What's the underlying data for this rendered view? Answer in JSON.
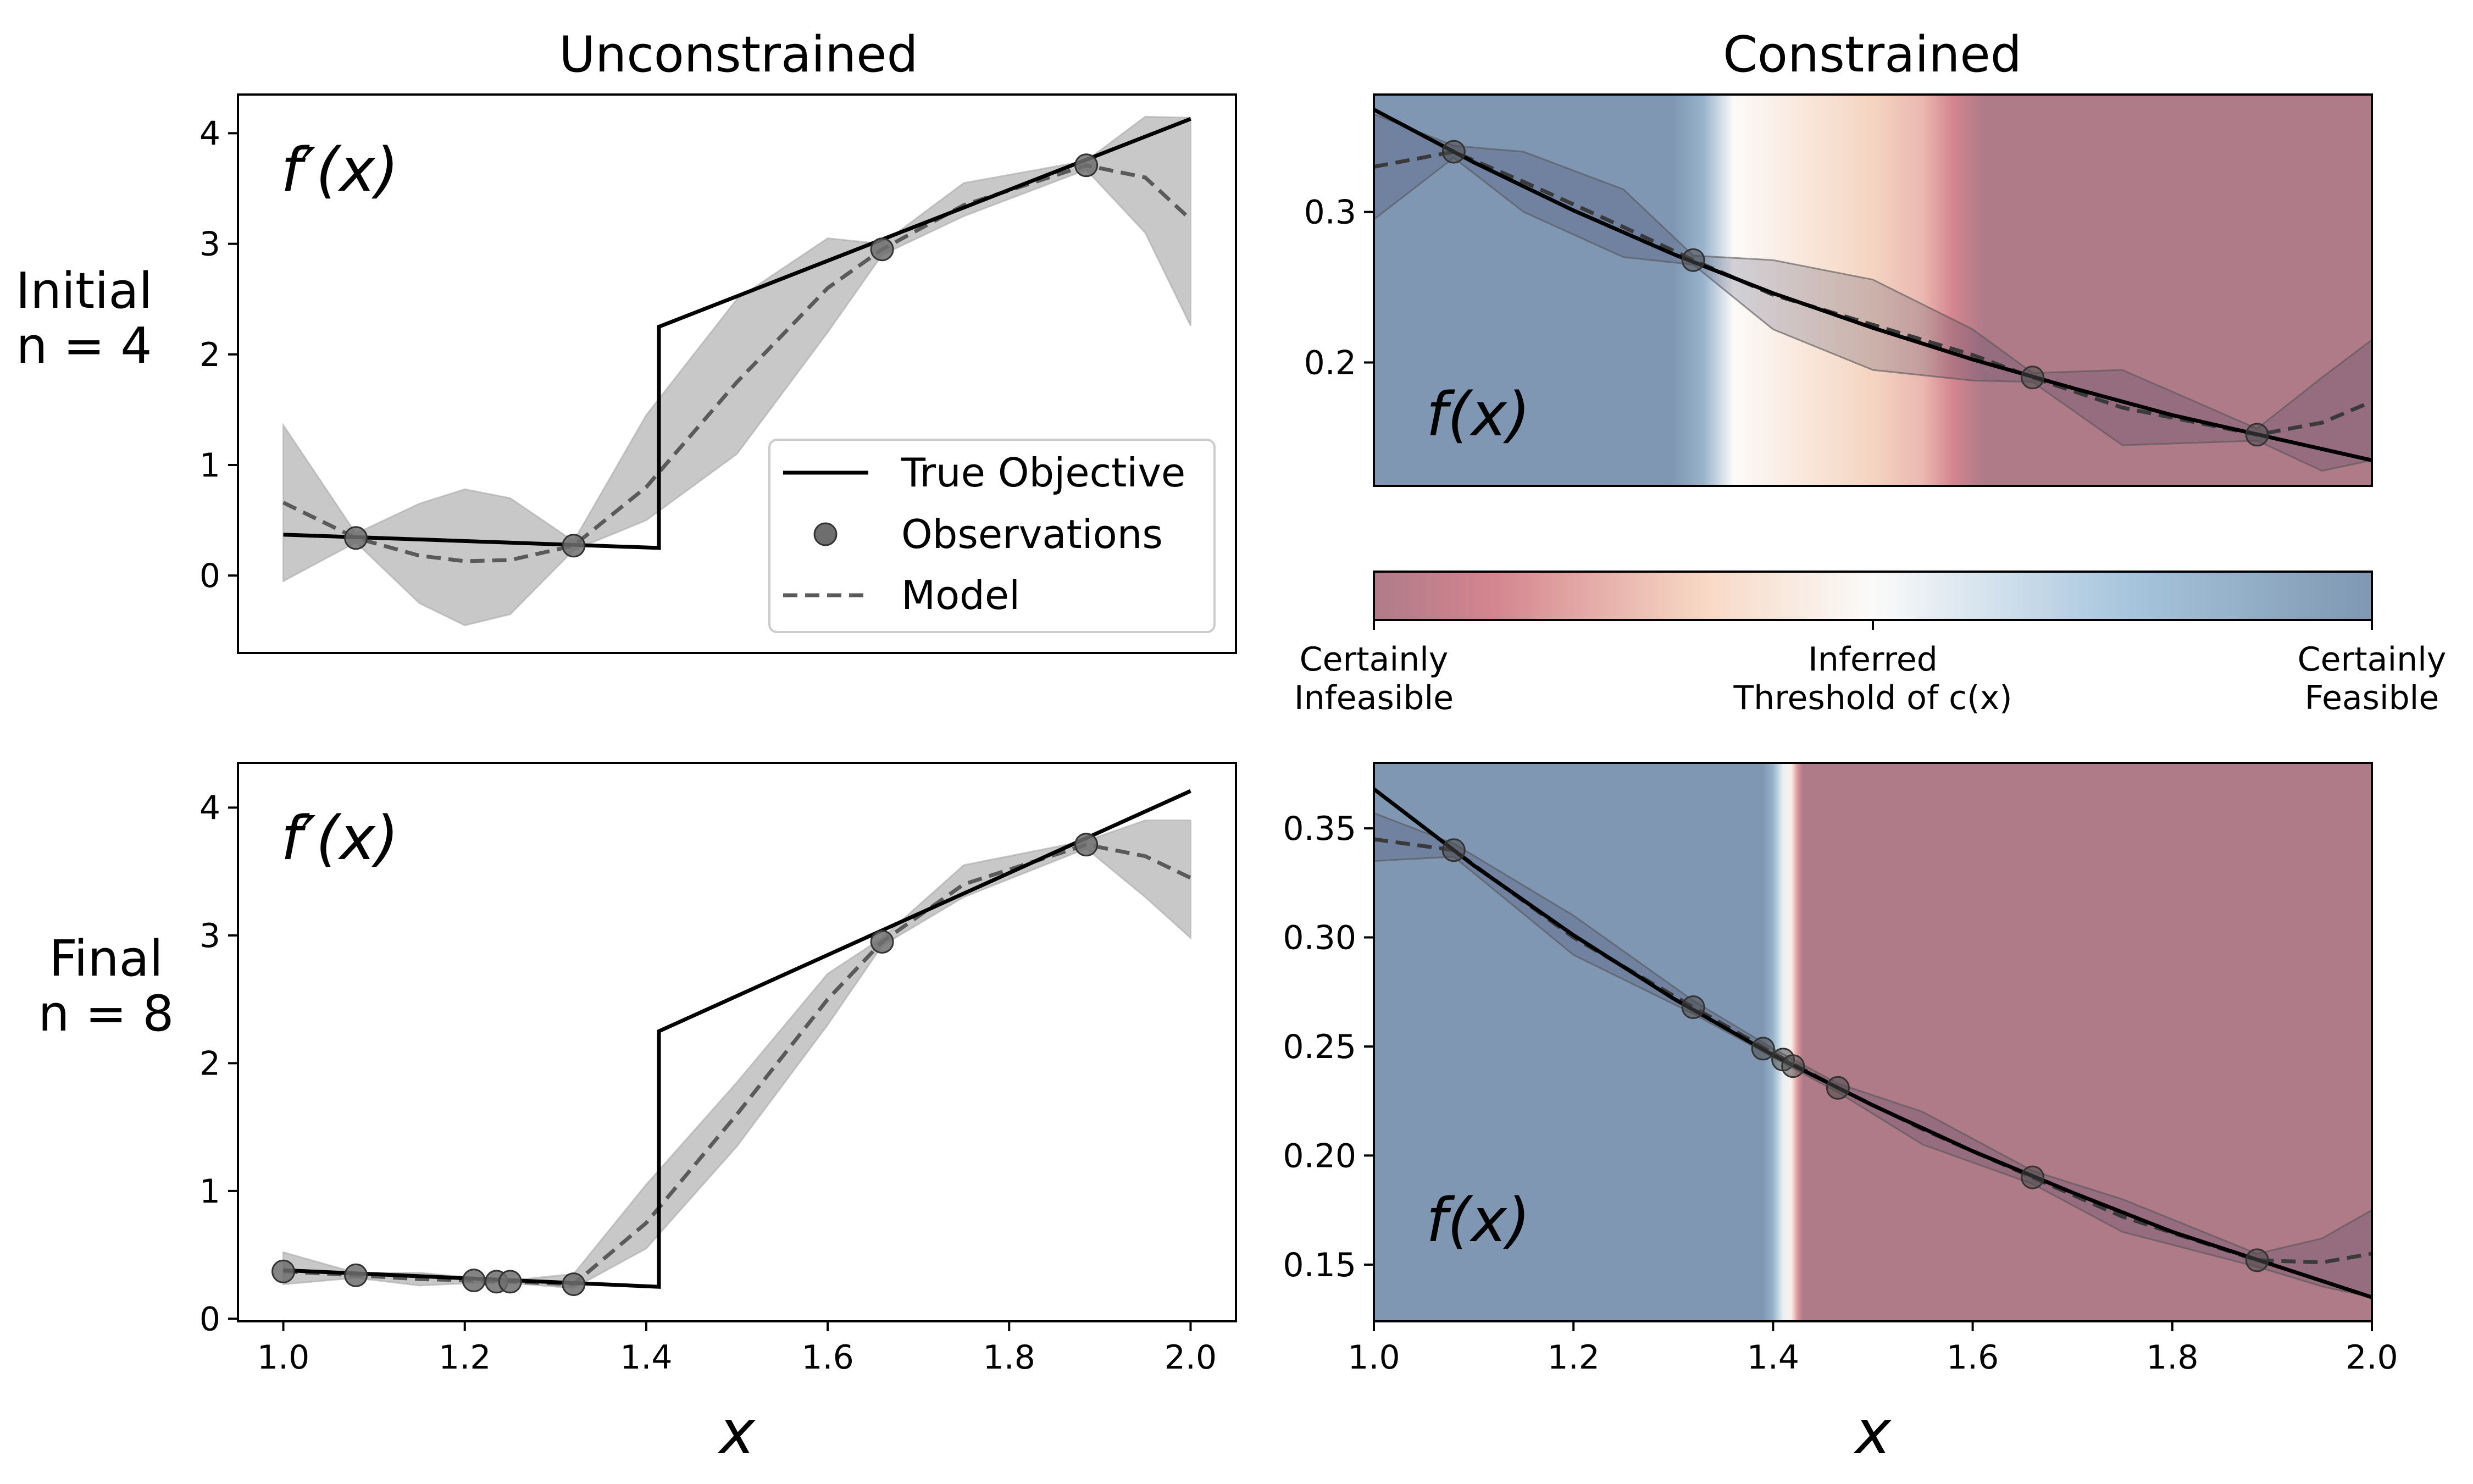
{
  "column_titles": [
    "Unconstrained",
    "Constrained"
  ],
  "row_labels": [
    {
      "line1": "Initial",
      "line2": "n = 4"
    },
    {
      "line1": "Final",
      "line2": "n = 8"
    }
  ],
  "colorbar": {
    "labels": [
      {
        "line1": "Certainly",
        "line2": "Infeasible"
      },
      {
        "line1": "Inferred",
        "line2": "Threshold of c(x)"
      },
      {
        "line1": "Certainly",
        "line2": "Feasible"
      }
    ],
    "colors": [
      "#b07b89",
      "#d4858f",
      "#f7d8c4",
      "#fbfaf9",
      "#a8c6de",
      "#7f97b2"
    ]
  },
  "legend": {
    "position": "lower-right",
    "entries": [
      "True Objective",
      "Observations",
      "Model"
    ]
  },
  "colors": {
    "true_objective": "#000000",
    "observations": "#6e6e6e",
    "model": "#5a5a5a",
    "band": "#c8c8c8",
    "feasible": "#7f97b2",
    "infeasible": "#b07b89"
  },
  "chart_data": [
    {
      "type": "line",
      "title": "Unconstrained",
      "row": "Initial n = 4",
      "panel_label": "f′(x)",
      "xlim": [
        0.95,
        2.05
      ],
      "ylim": [
        -0.7,
        4.35
      ],
      "yticks": [
        0,
        1,
        2,
        3,
        4
      ],
      "xticks": [],
      "xlabel": "",
      "true_objective": {
        "x": [
          1.0,
          1.414,
          1.414,
          2.0
        ],
        "y": [
          0.37,
          0.25,
          2.25,
          4.13
        ]
      },
      "observations": {
        "x": [
          1.08,
          1.32,
          1.66,
          1.885
        ],
        "y": [
          0.34,
          0.27,
          2.95,
          3.71
        ]
      },
      "model": {
        "x": [
          1.0,
          1.08,
          1.15,
          1.2,
          1.25,
          1.32,
          1.4,
          1.5,
          1.6,
          1.66,
          1.75,
          1.885,
          1.95,
          2.0
        ],
        "mean": [
          0.66,
          0.34,
          0.18,
          0.13,
          0.14,
          0.27,
          0.8,
          1.75,
          2.6,
          2.95,
          3.35,
          3.71,
          3.6,
          3.22
        ],
        "lower": [
          -0.05,
          0.3,
          -0.25,
          -0.45,
          -0.35,
          0.23,
          0.5,
          1.1,
          2.2,
          2.9,
          3.25,
          3.67,
          3.1,
          2.26
        ],
        "upper": [
          1.36,
          0.38,
          0.65,
          0.78,
          0.7,
          0.31,
          1.45,
          2.5,
          3.05,
          3.0,
          3.55,
          3.75,
          4.15,
          4.14
        ]
      }
    },
    {
      "type": "line",
      "title": "Constrained",
      "row": "Initial n = 4",
      "panel_label": "f(x)",
      "xlim": [
        1.0,
        2.0
      ],
      "ylim": [
        0.118,
        0.378
      ],
      "yticks": [
        0.2,
        0.3
      ],
      "ytick_labels": [
        "0.2",
        "0.3"
      ],
      "xticks": [],
      "xlabel": "",
      "true_objective": {
        "x": [
          1.0,
          1.1,
          1.2,
          1.3,
          1.4,
          1.5,
          1.6,
          1.7,
          1.8,
          1.9,
          2.0
        ],
        "y": [
          0.368,
          0.333,
          0.301,
          0.272,
          0.246,
          0.223,
          0.202,
          0.183,
          0.165,
          0.15,
          0.135
        ]
      },
      "observations": {
        "x": [
          1.08,
          1.32,
          1.66,
          1.885
        ],
        "y": [
          0.34,
          0.268,
          0.19,
          0.152
        ]
      },
      "model": {
        "x": [
          1.0,
          1.08,
          1.15,
          1.25,
          1.32,
          1.4,
          1.5,
          1.6,
          1.66,
          1.75,
          1.885,
          1.95,
          2.0
        ],
        "mean": [
          0.33,
          0.34,
          0.32,
          0.29,
          0.268,
          0.245,
          0.225,
          0.205,
          0.19,
          0.17,
          0.152,
          0.16,
          0.174
        ],
        "lower": [
          0.295,
          0.336,
          0.3,
          0.27,
          0.265,
          0.222,
          0.195,
          0.188,
          0.187,
          0.145,
          0.148,
          0.128,
          0.135
        ],
        "upper": [
          0.365,
          0.344,
          0.34,
          0.315,
          0.271,
          0.268,
          0.255,
          0.222,
          0.193,
          0.195,
          0.156,
          0.19,
          0.215
        ]
      },
      "feasibility_background": {
        "x": [
          1.0,
          1.3,
          1.33,
          1.36,
          1.4,
          1.45,
          1.5,
          1.55,
          1.58,
          1.61,
          2.0
        ],
        "p_feasible": [
          1.0,
          1.0,
          0.85,
          0.5,
          0.45,
          0.38,
          0.32,
          0.25,
          0.12,
          0.0,
          0.0
        ]
      }
    },
    {
      "type": "line",
      "title": "",
      "row": "Final n = 8",
      "panel_label": "f′(x)",
      "xlim": [
        0.95,
        2.05
      ],
      "ylim": [
        -0.02,
        4.35
      ],
      "yticks": [
        0,
        1,
        2,
        3,
        4
      ],
      "xticks": [
        1.0,
        1.2,
        1.4,
        1.6,
        1.8,
        2.0
      ],
      "xtick_labels": [
        "1.0",
        "1.2",
        "1.4",
        "1.6",
        "1.8",
        "2.0"
      ],
      "xlabel": "x",
      "true_objective": {
        "x": [
          1.0,
          1.414,
          1.414,
          2.0
        ],
        "y": [
          0.38,
          0.25,
          2.25,
          4.13
        ]
      },
      "observations": {
        "x": [
          1.0,
          1.08,
          1.21,
          1.235,
          1.25,
          1.32,
          1.66,
          1.885
        ],
        "y": [
          0.37,
          0.34,
          0.3,
          0.29,
          0.29,
          0.27,
          2.95,
          3.71
        ]
      },
      "model": {
        "x": [
          1.0,
          1.08,
          1.15,
          1.21,
          1.25,
          1.32,
          1.4,
          1.5,
          1.6,
          1.66,
          1.75,
          1.885,
          1.95,
          2.0
        ],
        "mean": [
          0.37,
          0.34,
          0.31,
          0.3,
          0.29,
          0.27,
          0.75,
          1.6,
          2.5,
          2.95,
          3.4,
          3.71,
          3.62,
          3.45
        ],
        "lower": [
          0.27,
          0.32,
          0.26,
          0.28,
          0.28,
          0.24,
          0.55,
          1.35,
          2.3,
          2.92,
          3.3,
          3.68,
          3.3,
          2.98
        ],
        "upper": [
          0.52,
          0.36,
          0.36,
          0.32,
          0.3,
          0.35,
          1.05,
          1.85,
          2.7,
          2.98,
          3.55,
          3.74,
          3.9,
          3.9
        ]
      }
    },
    {
      "type": "line",
      "title": "",
      "row": "Final n = 8",
      "panel_label": "f(x)",
      "xlim": [
        1.0,
        2.0
      ],
      "ylim": [
        0.124,
        0.38
      ],
      "yticks": [
        0.15,
        0.2,
        0.25,
        0.3,
        0.35
      ],
      "ytick_labels": [
        "0.15",
        "0.20",
        "0.25",
        "0.30",
        "0.35"
      ],
      "xticks": [
        1.0,
        1.2,
        1.4,
        1.6,
        1.8,
        2.0
      ],
      "xtick_labels": [
        "1.0",
        "1.2",
        "1.4",
        "1.6",
        "1.8",
        "2.0"
      ],
      "xlabel": "x",
      "true_objective": {
        "x": [
          1.0,
          1.1,
          1.2,
          1.3,
          1.4,
          1.5,
          1.6,
          1.7,
          1.8,
          1.9,
          2.0
        ],
        "y": [
          0.368,
          0.333,
          0.301,
          0.272,
          0.246,
          0.223,
          0.202,
          0.183,
          0.165,
          0.15,
          0.135
        ]
      },
      "observations": {
        "x": [
          1.08,
          1.32,
          1.39,
          1.41,
          1.42,
          1.465,
          1.66,
          1.885
        ],
        "y": [
          0.34,
          0.268,
          0.249,
          0.244,
          0.241,
          0.231,
          0.19,
          0.152
        ]
      },
      "model": {
        "x": [
          1.0,
          1.08,
          1.2,
          1.32,
          1.4,
          1.465,
          1.55,
          1.66,
          1.75,
          1.885,
          1.95,
          2.0
        ],
        "mean": [
          0.345,
          0.34,
          0.3,
          0.268,
          0.247,
          0.231,
          0.212,
          0.19,
          0.172,
          0.152,
          0.151,
          0.155
        ],
        "lower": [
          0.335,
          0.337,
          0.292,
          0.265,
          0.245,
          0.229,
          0.205,
          0.187,
          0.165,
          0.149,
          0.14,
          0.135
        ],
        "upper": [
          0.357,
          0.343,
          0.31,
          0.271,
          0.249,
          0.233,
          0.22,
          0.193,
          0.18,
          0.155,
          0.162,
          0.175
        ]
      },
      "feasibility_background": {
        "x": [
          1.0,
          1.39,
          1.4,
          1.41,
          1.418,
          1.425,
          1.43,
          2.0
        ],
        "p_feasible": [
          1.0,
          1.0,
          0.85,
          0.55,
          0.45,
          0.15,
          0.0,
          0.0
        ]
      }
    }
  ]
}
